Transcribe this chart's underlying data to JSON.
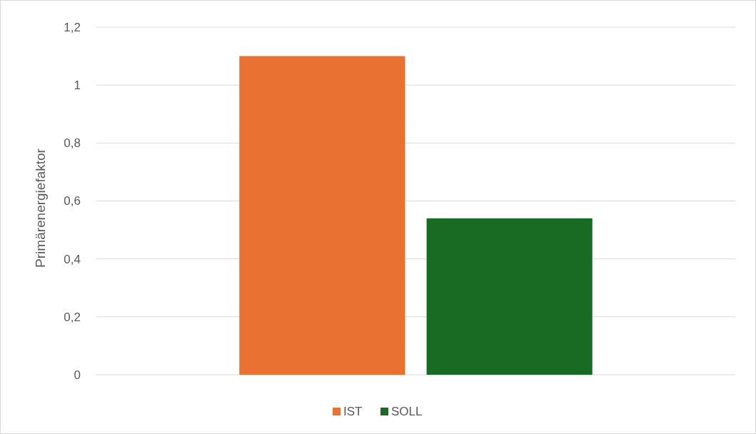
{
  "chart_data": {
    "type": "bar",
    "ylabel": "Primärenergiefaktor",
    "categories": [
      null
    ],
    "series": [
      {
        "name": "IST",
        "color": "#e97132",
        "values": [
          1.1
        ]
      },
      {
        "name": "SOLL",
        "color": "#196b24",
        "values": [
          0.54
        ]
      }
    ],
    "ylim": [
      0,
      1.2
    ],
    "yticks": [
      0,
      {
        "value": 0.2,
        "label": "0,2"
      },
      {
        "value": 0.4,
        "label": "0,4"
      },
      {
        "value": 0.6,
        "label": "0,6"
      },
      {
        "value": 0.8,
        "label": "0,8"
      },
      1,
      {
        "value": 1.2,
        "label": "1,2"
      }
    ],
    "grid": "y",
    "legend": "bottom"
  }
}
